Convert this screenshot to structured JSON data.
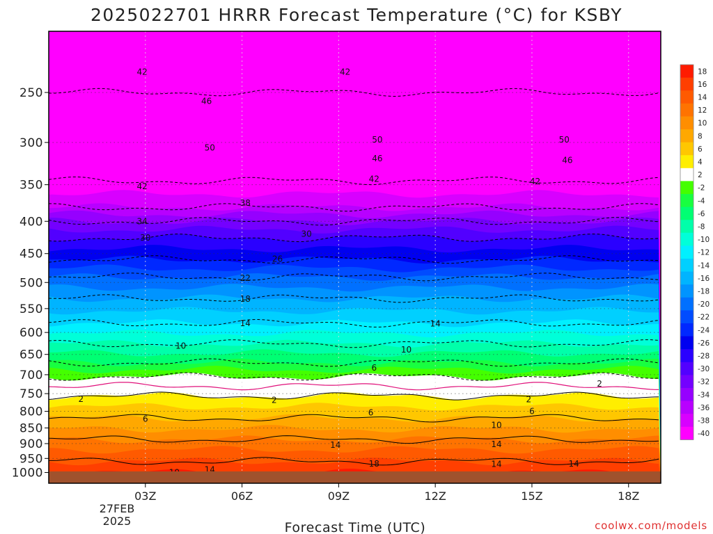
{
  "chart_data": {
    "type": "heatmap",
    "title": "2025022701 HRRR Forecast Temperature (°C) for KSBY",
    "xlabel": "Forecast Time (UTC)",
    "ylabel": "",
    "credit": "coolwx.com/models",
    "x_ticks": [
      {
        "hour": 3,
        "label": "03Z",
        "sub": [
          "27FEB",
          "2025"
        ]
      },
      {
        "hour": 6,
        "label": "06Z"
      },
      {
        "hour": 9,
        "label": "09Z"
      },
      {
        "hour": 12,
        "label": "12Z"
      },
      {
        "hour": 15,
        "label": "15Z"
      },
      {
        "hour": 18,
        "label": "18Z"
      }
    ],
    "xlim": [
      0,
      19
    ],
    "y_axis": {
      "scale": "log-pressure",
      "inverted": true,
      "range_hPa": [
        1040,
        200
      ],
      "tick_labels": [
        250,
        300,
        350,
        400,
        450,
        500,
        550,
        600,
        650,
        700,
        750,
        800,
        850,
        900,
        950,
        1000
      ]
    },
    "surface_pressure_hPa": 1000,
    "grid": true,
    "colorbar": {
      "placement": "right",
      "bins": [
        {
          "from": 16,
          "to": 18,
          "color": "#ff1b00"
        },
        {
          "from": 14,
          "to": 16,
          "color": "#ff3f00"
        },
        {
          "from": 12,
          "to": 14,
          "color": "#ff5a00"
        },
        {
          "from": 10,
          "to": 12,
          "color": "#ff7300"
        },
        {
          "from": 8,
          "to": 10,
          "color": "#ff8e00"
        },
        {
          "from": 6,
          "to": 8,
          "color": "#ffa800"
        },
        {
          "from": 4,
          "to": 6,
          "color": "#ffc700"
        },
        {
          "from": 2,
          "to": 4,
          "color": "#ffee00"
        },
        {
          "from": -2,
          "to": 2,
          "color": "#ffffff"
        },
        {
          "from": -4,
          "to": -2,
          "color": "#44ff00"
        },
        {
          "from": -6,
          "to": -4,
          "color": "#18ff40"
        },
        {
          "from": -8,
          "to": -6,
          "color": "#00ff73"
        },
        {
          "from": -10,
          "to": -8,
          "color": "#00ffaa"
        },
        {
          "from": -12,
          "to": -10,
          "color": "#00ffd9"
        },
        {
          "from": -14,
          "to": -12,
          "color": "#00f0ff"
        },
        {
          "from": -16,
          "to": -14,
          "color": "#00d0ff"
        },
        {
          "from": -18,
          "to": -16,
          "color": "#00b4ff"
        },
        {
          "from": -20,
          "to": -18,
          "color": "#0094ff"
        },
        {
          "from": -22,
          "to": -20,
          "color": "#0070ff"
        },
        {
          "from": -24,
          "to": -22,
          "color": "#004cff"
        },
        {
          "from": -26,
          "to": -24,
          "color": "#0028ff"
        },
        {
          "from": -28,
          "to": -26,
          "color": "#0000f0"
        },
        {
          "from": -30,
          "to": -28,
          "color": "#2a00ff"
        },
        {
          "from": -32,
          "to": -30,
          "color": "#5200ff"
        },
        {
          "from": -34,
          "to": -32,
          "color": "#7400ff"
        },
        {
          "from": -36,
          "to": -34,
          "color": "#9600ff"
        },
        {
          "from": -38,
          "to": -36,
          "color": "#b800ff"
        },
        {
          "from": -40,
          "to": -38,
          "color": "#d800ff"
        },
        {
          "from": -60,
          "to": -40,
          "color": "#ff00ff"
        }
      ],
      "tick_labels": [
        "18",
        "16",
        "14",
        "12",
        "10",
        "8",
        "6",
        "4",
        "2",
        "-2",
        "-4",
        "-6",
        "-8",
        "-10",
        "-12",
        "-14",
        "-16",
        "-18",
        "-20",
        "-22",
        "-24",
        "-26",
        "-28",
        "-30",
        "-32",
        "-34",
        "-36",
        "-38",
        "-40"
      ]
    },
    "temperature_profile": [
      {
        "p": 210,
        "t": -44
      },
      {
        "p": 230,
        "t": -44
      },
      {
        "p": 250,
        "t": -46
      },
      {
        "p": 300,
        "t": -50
      },
      {
        "p": 320,
        "t": -46
      },
      {
        "p": 345,
        "t": -42
      },
      {
        "p": 380,
        "t": -38
      },
      {
        "p": 400,
        "t": -34
      },
      {
        "p": 425,
        "t": -30
      },
      {
        "p": 460,
        "t": -26
      },
      {
        "p": 490,
        "t": -22
      },
      {
        "p": 530,
        "t": -18
      },
      {
        "p": 580,
        "t": -14
      },
      {
        "p": 625,
        "t": -10
      },
      {
        "p": 670,
        "t": -6
      },
      {
        "p": 705,
        "t": -2
      },
      {
        "p": 730,
        "t": 0
      },
      {
        "p": 770,
        "t": 3
      },
      {
        "p": 820,
        "t": 6
      },
      {
        "p": 870,
        "t": 9
      },
      {
        "p": 920,
        "t": 12
      },
      {
        "p": 960,
        "t": 14
      },
      {
        "p": 1000,
        "t": 16
      }
    ],
    "contour_labels": [
      {
        "text": "42",
        "hour": 2.9,
        "p": 232
      },
      {
        "text": "42",
        "hour": 9.2,
        "p": 232
      },
      {
        "text": "46",
        "hour": 4.9,
        "p": 258
      },
      {
        "text": "50",
        "hour": 5.0,
        "p": 306
      },
      {
        "text": "50",
        "hour": 10.2,
        "p": 297
      },
      {
        "text": "50",
        "hour": 16.0,
        "p": 297
      },
      {
        "text": "46",
        "hour": 10.2,
        "p": 318
      },
      {
        "text": "46",
        "hour": 16.1,
        "p": 320
      },
      {
        "text": "42",
        "hour": 2.9,
        "p": 352
      },
      {
        "text": "42",
        "hour": 10.1,
        "p": 343
      },
      {
        "text": "42",
        "hour": 15.1,
        "p": 346
      },
      {
        "text": "38",
        "hour": 6.1,
        "p": 374
      },
      {
        "text": "34",
        "hour": 2.9,
        "p": 400
      },
      {
        "text": "30",
        "hour": 3.0,
        "p": 425
      },
      {
        "text": "30",
        "hour": 8.0,
        "p": 419
      },
      {
        "text": "26",
        "hour": 7.1,
        "p": 459
      },
      {
        "text": "22",
        "hour": 6.1,
        "p": 492
      },
      {
        "text": "18",
        "hour": 6.1,
        "p": 531
      },
      {
        "text": "14",
        "hour": 6.1,
        "p": 580
      },
      {
        "text": "14",
        "hour": 12.0,
        "p": 581
      },
      {
        "text": "10",
        "hour": 4.1,
        "p": 630
      },
      {
        "text": "10",
        "hour": 11.1,
        "p": 639
      },
      {
        "text": "6",
        "hour": 10.1,
        "p": 683
      },
      {
        "text": "2",
        "hour": 17.1,
        "p": 724
      },
      {
        "text": "2",
        "hour": 1.0,
        "p": 765
      },
      {
        "text": "2",
        "hour": 7.0,
        "p": 768
      },
      {
        "text": "2",
        "hour": 14.9,
        "p": 766
      },
      {
        "text": "6",
        "hour": 3.0,
        "p": 822
      },
      {
        "text": "6",
        "hour": 10.0,
        "p": 804
      },
      {
        "text": "6",
        "hour": 15.0,
        "p": 800
      },
      {
        "text": "10",
        "hour": 13.9,
        "p": 841
      },
      {
        "text": "14",
        "hour": 8.9,
        "p": 905
      },
      {
        "text": "14",
        "hour": 13.9,
        "p": 902
      },
      {
        "text": "18",
        "hour": 10.1,
        "p": 969
      },
      {
        "text": "14",
        "hour": 5.0,
        "p": 990
      },
      {
        "text": "14",
        "hour": 13.9,
        "p": 970
      },
      {
        "text": "14",
        "hour": 16.3,
        "p": 969
      },
      {
        "text": "10",
        "hour": 3.9,
        "p": 1000
      }
    ]
  }
}
